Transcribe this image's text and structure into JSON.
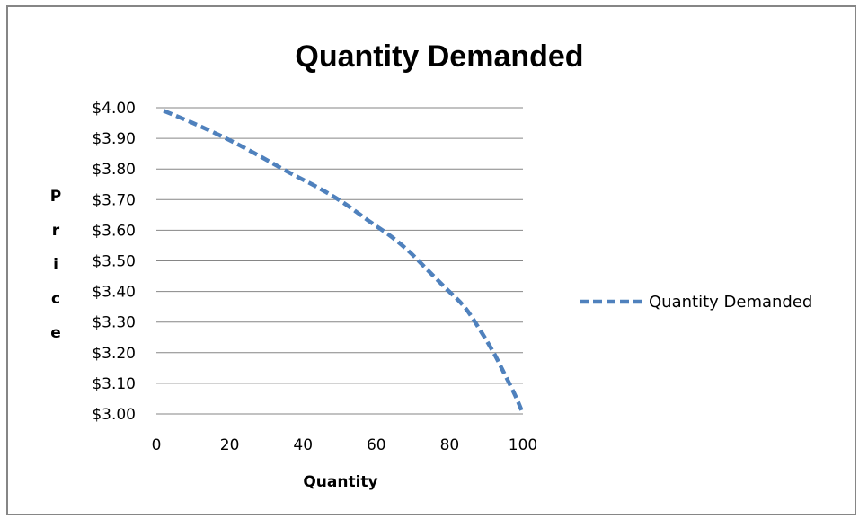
{
  "chart_data": {
    "type": "line",
    "title": "Quantity Demanded",
    "xlabel": "Quantity",
    "ylabel": "Price",
    "xlim": [
      0,
      100
    ],
    "ylim": [
      3.0,
      4.0
    ],
    "x_ticks": [
      "0",
      "20",
      "40",
      "60",
      "80",
      "100"
    ],
    "y_ticks": [
      "$3.00",
      "$3.10",
      "$3.20",
      "$3.30",
      "$3.40",
      "$3.50",
      "$3.60",
      "$3.70",
      "$3.80",
      "$3.90",
      "$4.00"
    ],
    "grid": "horizontal",
    "legend_position": "right",
    "series": [
      {
        "name": "Quantity Demanded",
        "color": "#4F81BD",
        "line_style": "dashed",
        "x": [
          2,
          10,
          19,
          27,
          36,
          44,
          51,
          58,
          64,
          69,
          74,
          79,
          84,
          88,
          92,
          95,
          97.5,
          99,
          100
        ],
        "y": [
          3.99,
          3.95,
          3.9,
          3.85,
          3.79,
          3.74,
          3.69,
          3.63,
          3.58,
          3.53,
          3.47,
          3.41,
          3.35,
          3.28,
          3.2,
          3.13,
          3.07,
          3.03,
          3.0
        ]
      }
    ]
  }
}
